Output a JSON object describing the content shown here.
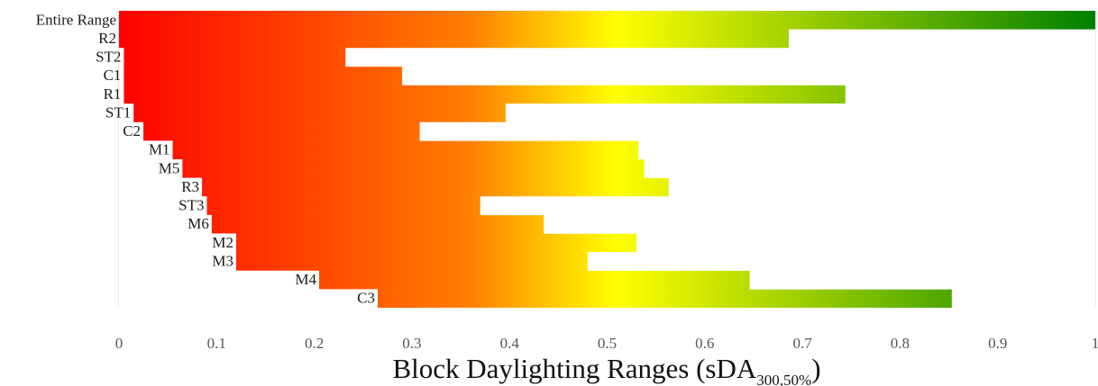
{
  "chart_data": {
    "type": "bar",
    "orientation": "horizontal",
    "xlabel": "Block Daylighting Ranges (sDA",
    "xlabel_subscript": "300,50%",
    "xlabel_close": ")",
    "xlim": [
      0,
      1
    ],
    "xticks": [
      "0",
      "0.1",
      "0.2",
      "0.3",
      "0.4",
      "0.5",
      "0.6",
      "0.7",
      "0.8",
      "0.9",
      "1"
    ],
    "grid": "vertical",
    "color_scale": [
      "#ff0000",
      "#ff8000",
      "#ffff00",
      "#008000"
    ],
    "categories": [
      "Entire Range",
      "R2",
      "ST2",
      "C1",
      "R1",
      "ST1",
      "C2",
      "M1",
      "M5",
      "R3",
      "ST3",
      "M6",
      "M2",
      "M3",
      "M4",
      "C3"
    ],
    "ranges": [
      [
        0.0,
        1.0
      ],
      [
        0.0,
        0.686
      ],
      [
        0.005,
        0.232
      ],
      [
        0.005,
        0.29
      ],
      [
        0.005,
        0.744
      ],
      [
        0.015,
        0.396
      ],
      [
        0.025,
        0.308
      ],
      [
        0.055,
        0.532
      ],
      [
        0.065,
        0.538
      ],
      [
        0.085,
        0.563
      ],
      [
        0.09,
        0.37
      ],
      [
        0.095,
        0.435
      ],
      [
        0.12,
        0.53
      ],
      [
        0.12,
        0.48
      ],
      [
        0.205,
        0.646
      ],
      [
        0.265,
        0.853
      ]
    ]
  }
}
